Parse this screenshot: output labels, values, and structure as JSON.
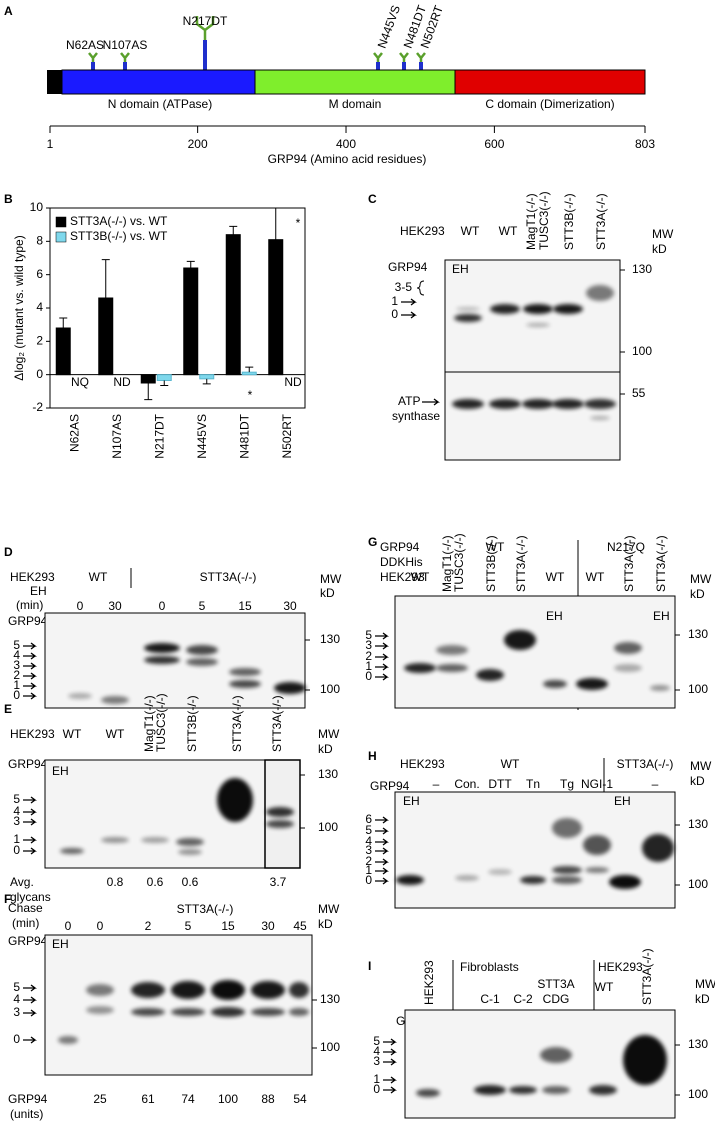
{
  "chart_data": {
    "type": "bar",
    "categories": [
      "N62AS",
      "N107AS",
      "N217DT",
      "N445VS",
      "N481DT",
      "N502RT"
    ],
    "series": [
      {
        "name": "STT3A(-/-) vs. WT",
        "color": "#000000",
        "values": [
          2.8,
          4.6,
          -0.5,
          6.4,
          8.4,
          8.1
        ],
        "errors": [
          0.6,
          2.3,
          1.0,
          0.4,
          0.5,
          1.9
        ]
      },
      {
        "name": "STT3B(-/-) vs. WT",
        "color": "#7fd8ec",
        "values": [
          null,
          null,
          -0.35,
          -0.25,
          0.15,
          null
        ],
        "errors": [
          null,
          null,
          0.3,
          0.3,
          0.3,
          null
        ]
      }
    ],
    "ylabel": "Δlog₂ (mutant vs. wild type)",
    "ylim": [
      -2,
      10
    ],
    "yticks": [
      -2,
      0,
      2,
      4,
      6,
      8,
      10
    ],
    "annotations": [
      "NQ",
      "ND",
      "ND",
      "*",
      "*"
    ],
    "legend": "upper left"
  },
  "panels": {
    "a": {
      "letter": "A",
      "sites": [
        "N62AS",
        "N107AS",
        "N217DT",
        "N445VS",
        "N481DT",
        "N502RT"
      ],
      "domains": [
        "N domain (ATPase)",
        "M domain",
        "C domain (Dimerization)"
      ],
      "xlim": [
        1,
        803
      ],
      "xticks": [
        1,
        200,
        400,
        600,
        803
      ],
      "xlabel": "GRP94 (Amino acid residues)"
    },
    "b": {
      "letter": "B"
    },
    "c": {
      "letter": "C",
      "cell": "HEK293",
      "lanes": [
        "WT",
        "WT",
        "MagT1(-/-)",
        "TUSC3(-/-)",
        "STT3B(-/-)",
        "STT3A(-/-)"
      ],
      "mw": "MW",
      "kd": "kD",
      "markers": [
        130,
        100,
        55
      ],
      "protein": "GRP94",
      "eh": "EH",
      "bands": [
        "3-5",
        "1",
        "0"
      ],
      "loading": [
        "ATP",
        "synthase"
      ]
    },
    "d": {
      "letter": "D",
      "cell": "HEK293",
      "groups": [
        "WT",
        "STT3A(-/-)"
      ],
      "time": [
        "EH",
        "(min)"
      ],
      "times": [
        0,
        30,
        0,
        5,
        15,
        30
      ],
      "mw": "MW",
      "kd": "kD",
      "markers": [
        130,
        100
      ],
      "protein": "GRP94",
      "bands": [
        5,
        4,
        3,
        2,
        1,
        0
      ]
    },
    "e": {
      "letter": "E",
      "cell": "HEK293",
      "lanes": [
        "WT",
        "WT",
        "MagT1(-/-)",
        "TUSC3(-/-)",
        "STT3B(-/-)",
        "STT3A(-/-)",
        "STT3A(-/-)"
      ],
      "mw": "MW",
      "kd": "kD",
      "markers": [
        130,
        100
      ],
      "protein": "GRP94",
      "eh": "EH",
      "bands": [
        5,
        4,
        3,
        1,
        0
      ],
      "avg": [
        "Avg.",
        "glycans"
      ],
      "glycans": [
        0.8,
        0.6,
        0.6,
        3.7
      ]
    },
    "f": {
      "letter": "F",
      "chase": [
        "Chase",
        "(min)"
      ],
      "group": "STT3A(-/-)",
      "times": [
        0,
        0,
        2,
        5,
        15,
        30,
        45
      ],
      "mw": "MW",
      "kd": "kD",
      "markers": [
        130,
        100
      ],
      "protein": "GRP94",
      "eh": "EH",
      "bands": [
        5,
        4,
        3,
        0
      ],
      "units": [
        "GRP94",
        "(units)"
      ],
      "amounts": [
        25,
        61,
        74,
        100,
        88,
        54
      ]
    },
    "g": {
      "letter": "G",
      "construct": [
        "GRP94",
        "DDKHis"
      ],
      "groups": [
        "WT",
        "N217Q"
      ],
      "cell": "HEK293",
      "lanes": [
        "WT",
        "MagT1(-/-)",
        "TUSC3(-/-)",
        "STT3B(-/-)",
        "STT3A(-/-)",
        "WT",
        "WT",
        "STT3A(-/-)",
        "STT3A(-/-)"
      ],
      "mw": "MW",
      "kd": "kD",
      "markers": [
        130,
        100
      ],
      "eh": [
        "EH",
        "EH"
      ],
      "bands": [
        5,
        3,
        2,
        1,
        0
      ]
    },
    "h": {
      "letter": "H",
      "cell": "HEK293",
      "groups": [
        "WT",
        "STT3A(-/-)"
      ],
      "treatments": [
        "–",
        "Con.",
        "DTT",
        "Tn",
        "Tg",
        "NGI-1",
        "–"
      ],
      "mw": "MW",
      "kd": "kD",
      "markers": [
        130,
        100
      ],
      "protein": "GRP94",
      "eh": [
        "EH",
        "EH"
      ],
      "bands": [
        6,
        5,
        4,
        3,
        2,
        1,
        0
      ]
    },
    "i": {
      "letter": "I",
      "lane0": "HEK293",
      "fibro": "Fibroblasts",
      "lanes": [
        "C-1",
        "C-2",
        "STT3A",
        "CDG"
      ],
      "cell": "HEK293",
      "wt": "WT",
      "stt": "STT3A(-/-)",
      "mw": "MW",
      "kd": "kD",
      "markers": [
        130,
        100
      ],
      "protein": "GRP94",
      "eh": "EH",
      "bands": [
        5,
        4,
        3,
        1,
        0
      ]
    }
  }
}
